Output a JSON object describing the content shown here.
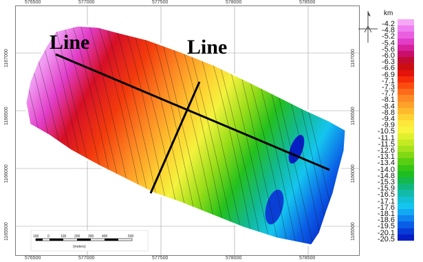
{
  "map": {
    "x_ticks_top": [
      "576500",
      "577000",
      "577500",
      "578000",
      "578500"
    ],
    "x_ticks_bottom": [
      "576500",
      "577000",
      "577500",
      "578000",
      "578500"
    ],
    "y_ticks_left": [
      "1167000",
      "1166500",
      "1166000",
      "1165500"
    ],
    "y_ticks_right": [
      "1167000",
      "1166500",
      "1166000",
      "1165500"
    ],
    "profile_line_label_1": "Line",
    "profile_line_label_2": "Line"
  },
  "legend": {
    "unit": "km",
    "entries": [
      {
        "value": "-4.2",
        "color": "#f6a8f6"
      },
      {
        "value": "-4.8",
        "color": "#ef7ff0"
      },
      {
        "value": "-5.2",
        "color": "#ea5fe0"
      },
      {
        "value": "-5.4",
        "color": "#e23dc8"
      },
      {
        "value": "-5.6",
        "color": "#d7219c"
      },
      {
        "value": "-6.0",
        "color": "#c90f6a"
      },
      {
        "value": "-6.3",
        "color": "#c20b33"
      },
      {
        "value": "-6.6",
        "color": "#cc0e13"
      },
      {
        "value": "-6.9",
        "color": "#e3120a"
      },
      {
        "value": "-7.1",
        "color": "#f52b0a"
      },
      {
        "value": "-7.3",
        "color": "#fb4c10"
      },
      {
        "value": "-7.7",
        "color": "#fd6b1b"
      },
      {
        "value": "-8.1",
        "color": "#fe8a26"
      },
      {
        "value": "-8.4",
        "color": "#ffa12b"
      },
      {
        "value": "-8.8",
        "color": "#ffba2e"
      },
      {
        "value": "-9.4",
        "color": "#ffd233"
      },
      {
        "value": "-9.9",
        "color": "#ffe83b"
      },
      {
        "value": "-10.5",
        "color": "#f8f33d"
      },
      {
        "value": "-11.1",
        "color": "#dff02f"
      },
      {
        "value": "-11.5",
        "color": "#c4ea24"
      },
      {
        "value": "-12.6",
        "color": "#a5e21b"
      },
      {
        "value": "-13.1",
        "color": "#82d815"
      },
      {
        "value": "-13.4",
        "color": "#5ace13"
      },
      {
        "value": "-14.0",
        "color": "#36c515"
      },
      {
        "value": "-14.8",
        "color": "#1ebd22"
      },
      {
        "value": "-15.3",
        "color": "#14b84c"
      },
      {
        "value": "-15.9",
        "color": "#11b87d"
      },
      {
        "value": "-16.5",
        "color": "#12bba9"
      },
      {
        "value": "-17.1",
        "color": "#13bfd3"
      },
      {
        "value": "-17.6",
        "color": "#14c5ef"
      },
      {
        "value": "-18.1",
        "color": "#12a8f3"
      },
      {
        "value": "-18.6",
        "color": "#0e84ef"
      },
      {
        "value": "-19.5",
        "color": "#0a5ee6"
      },
      {
        "value": "-20.1",
        "color": "#083bd8"
      },
      {
        "value": "-20.5",
        "color": "#061fc4"
      }
    ]
  },
  "scalebar": {
    "ticks": [
      "100",
      "0",
      "100",
      "200",
      "300",
      "400",
      "500"
    ],
    "unit": "(meters)"
  }
}
